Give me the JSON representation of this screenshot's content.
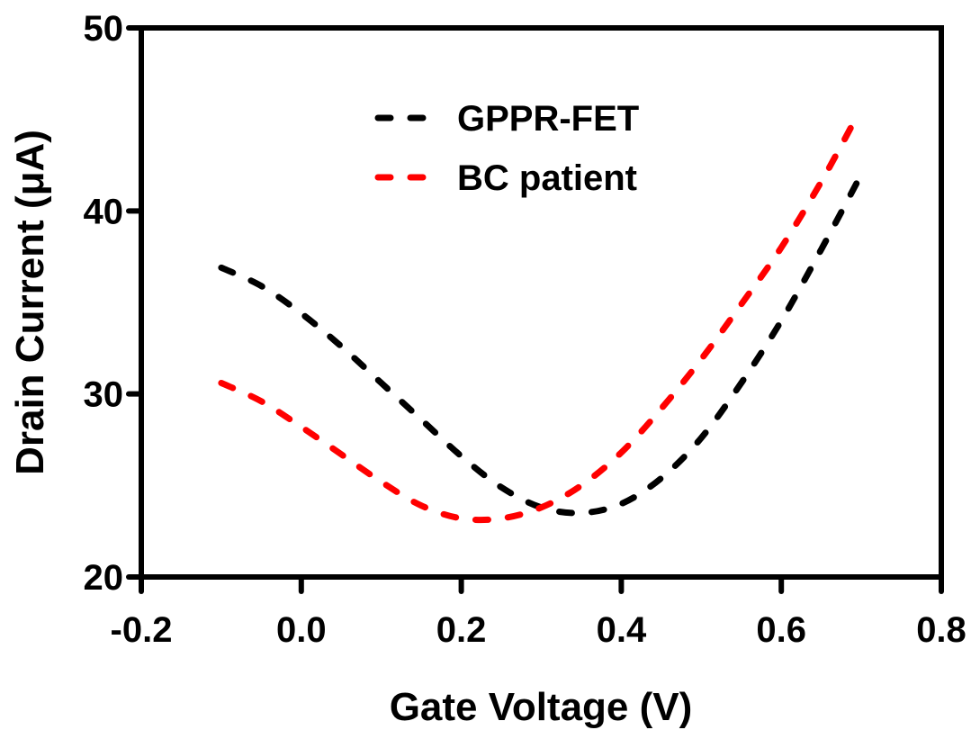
{
  "chart_data": {
    "type": "line",
    "title": "",
    "xlabel": "Gate Voltage (V)",
    "ylabel": "Drain Current (μA)",
    "xlim": [
      -0.2,
      0.8
    ],
    "ylim": [
      20,
      50
    ],
    "xticks": [
      "-0.2",
      "0.0",
      "0.2",
      "0.4",
      "0.6",
      "0.8"
    ],
    "xtick_values": [
      -0.2,
      0.0,
      0.2,
      0.4,
      0.6,
      0.8
    ],
    "yticks": [
      "20",
      "30",
      "40",
      "50"
    ],
    "ytick_values": [
      20,
      30,
      40,
      50
    ],
    "grid": false,
    "legend_position": "top-center",
    "series": [
      {
        "name": "GPPR-FET",
        "color": "#000000",
        "style": "dashed",
        "x": [
          -0.1,
          -0.05,
          0.0,
          0.05,
          0.1,
          0.15,
          0.2,
          0.25,
          0.3,
          0.35,
          0.4,
          0.45,
          0.5,
          0.55,
          0.6,
          0.65,
          0.7
        ],
        "y": [
          36.9,
          35.9,
          34.4,
          32.6,
          30.6,
          28.6,
          26.6,
          24.9,
          23.8,
          23.5,
          24.0,
          25.4,
          27.6,
          30.6,
          34.0,
          37.9,
          42.0
        ]
      },
      {
        "name": "BC patient",
        "color": "#ff0000",
        "style": "dashed",
        "x": [
          -0.1,
          -0.05,
          0.0,
          0.05,
          0.1,
          0.15,
          0.2,
          0.25,
          0.3,
          0.35,
          0.4,
          0.45,
          0.5,
          0.55,
          0.6,
          0.65,
          0.69
        ],
        "y": [
          30.6,
          29.6,
          28.2,
          26.7,
          25.2,
          23.9,
          23.2,
          23.2,
          23.8,
          25.0,
          26.8,
          29.2,
          31.9,
          34.9,
          38.0,
          41.6,
          44.8
        ]
      }
    ]
  }
}
